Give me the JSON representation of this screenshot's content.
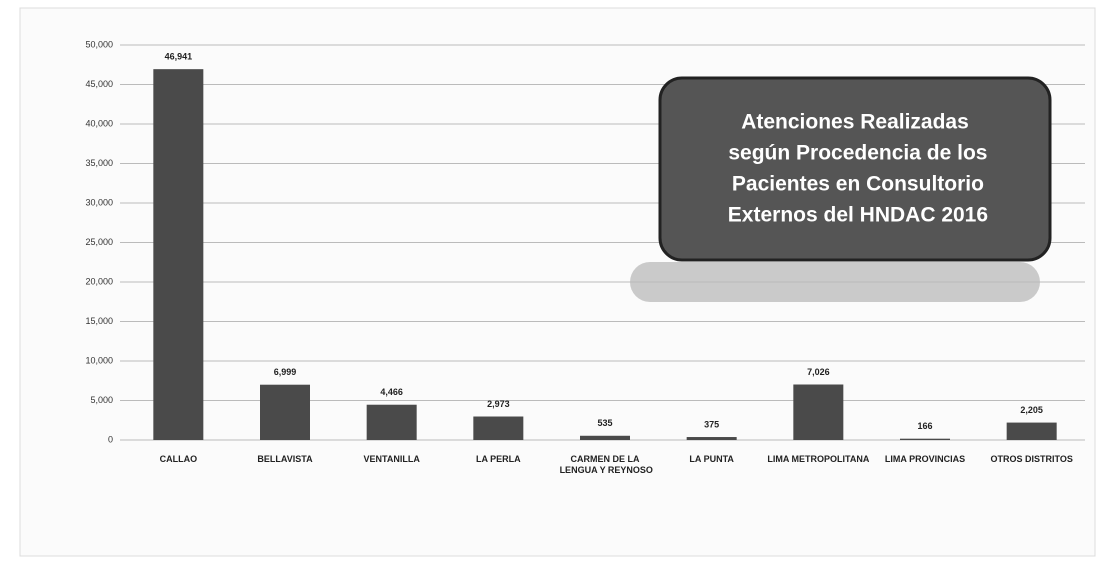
{
  "chart_data": {
    "type": "bar",
    "title": "Atenciones Realizadas según Procedencia de los Pacientes en Consultorio Externos del HNDAC 2016",
    "categories": [
      "CALLAO",
      "BELLAVISTA",
      "VENTANILLA",
      "LA PERLA",
      "CARMEN DE LA LENGUA Y REYNOSO",
      "LA PUNTA",
      "LIMA METROPOLITANA",
      "LIMA PROVINCIAS",
      "OTROS DISTRITOS"
    ],
    "values": [
      46941,
      6999,
      4466,
      2973,
      535,
      375,
      7026,
      166,
      2205
    ],
    "value_labels": [
      "46,941",
      "6,999",
      "4,466",
      "2,973",
      "535",
      "375",
      "7,026",
      "166",
      "2,205"
    ],
    "color": "#4a4a4a",
    "ylim": [
      0,
      50000
    ],
    "yticks": [
      0,
      {
        "value": 5000,
        "label": "5,000"
      },
      {
        "value": 10000,
        "label": "10,000"
      },
      {
        "value": 15000,
        "label": "15,000"
      },
      {
        "value": 20000,
        "label": "20,000"
      },
      {
        "value": 25000,
        "label": "25,000"
      },
      {
        "value": 30000,
        "label": "30,000"
      },
      {
        "value": 35000,
        "label": "35,000"
      },
      {
        "value": 40000,
        "label": "40,000"
      },
      {
        "value": 45000,
        "label": "45,000"
      },
      {
        "value": 50000,
        "label": "50,000"
      }
    ],
    "grid": true
  }
}
